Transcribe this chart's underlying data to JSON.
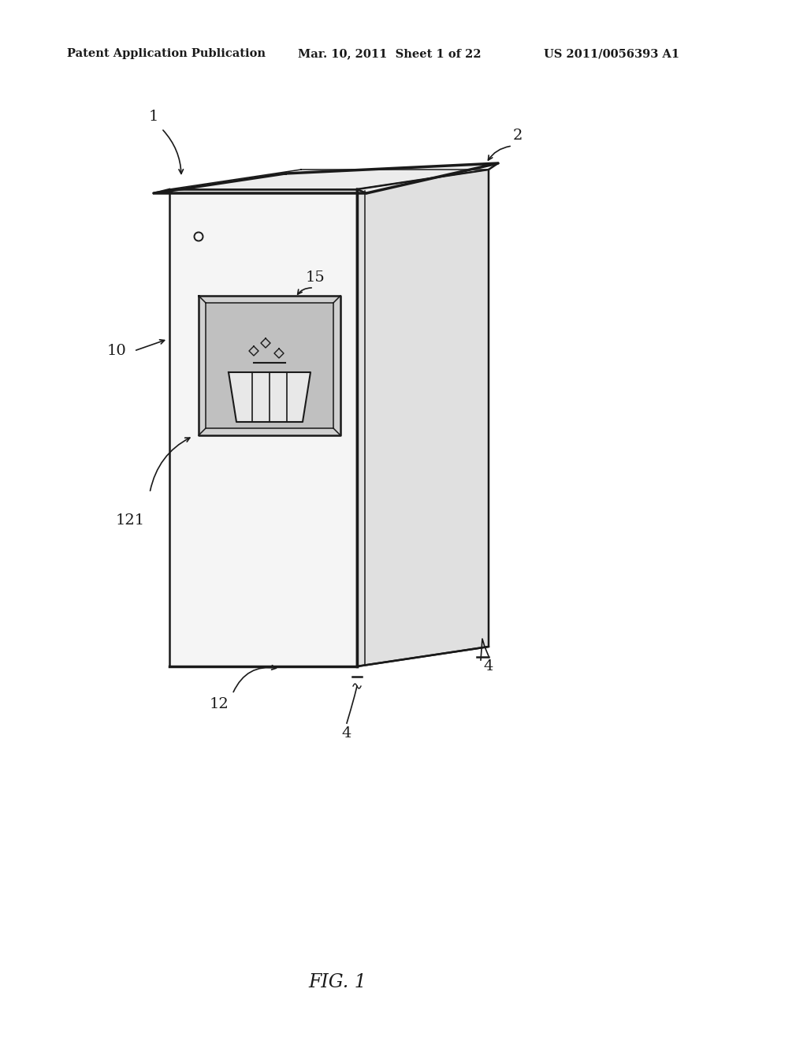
{
  "background_color": "#ffffff",
  "header_left": "Patent Application Publication",
  "header_center": "Mar. 10, 2011  Sheet 1 of 22",
  "header_right": "US 2011/0056393 A1",
  "figure_label": "FIG. 1",
  "line_color": "#1a1a1a",
  "fill_front": "#f5f5f5",
  "fill_right": "#e0e0e0",
  "fill_top": "#ececec",
  "fill_panel": "#d0d0d0",
  "fill_panel_inner": "#c0c0c0"
}
